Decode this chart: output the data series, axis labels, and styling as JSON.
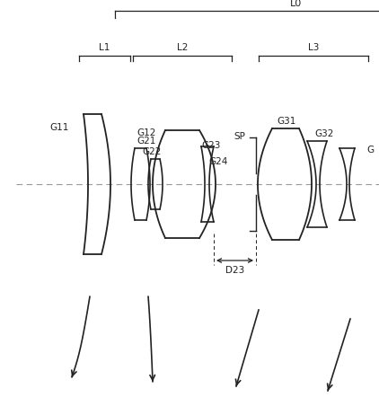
{
  "bg_color": "#ffffff",
  "line_color": "#222222",
  "text_color": "#222222",
  "figsize": [
    4.22,
    4.62
  ],
  "dpi": 100,
  "title_L0": "L0",
  "title_L1": "L1",
  "title_L2": "L2",
  "title_L3": "L3",
  "label_G11": "G11",
  "label_G12": "G12",
  "label_G21": "G21",
  "label_G22": "G22",
  "label_G23": "G23",
  "label_G24": "G24",
  "label_G31": "G31",
  "label_G32": "G32",
  "label_G_partial": "G",
  "label_SP": "SP",
  "label_D23": "D23"
}
